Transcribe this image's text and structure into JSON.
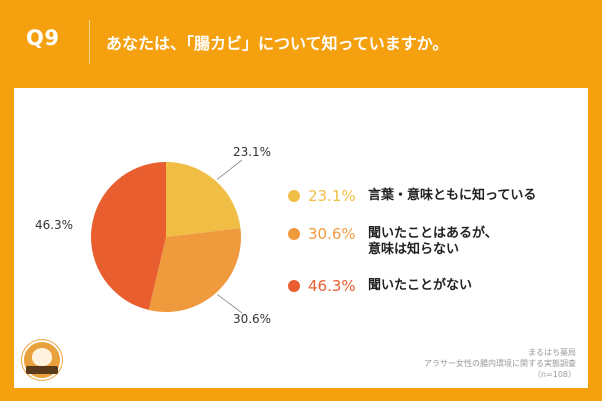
{
  "header": {
    "question_number": "Q9",
    "question_text": "あなたは、「腸カビ」について知っていますか。"
  },
  "chart_data": {
    "type": "pie",
    "title": "",
    "slices": [
      {
        "label": "言葉・意味ともに知っている",
        "value": 23.1,
        "label_text": "23.1%",
        "color": "#F0BD45"
      },
      {
        "label": "聞いたことはあるが、\n意味は知らない",
        "value": 30.6,
        "label_text": "30.6%",
        "color": "#F09A3E"
      },
      {
        "label": "聞いたことがない",
        "value": 46.3,
        "label_text": "46.3%",
        "color": "#E85E2F"
      }
    ],
    "start_angle": 0,
    "direction": "clockwise"
  },
  "legend": {
    "items": [
      {
        "pct": "23.1%",
        "text": "言葉・意味ともに知っている",
        "color": "#F0BD45"
      },
      {
        "pct": "30.6%",
        "text": "聞いたことはあるが、\n意味は知らない",
        "color": "#F09A3E"
      },
      {
        "pct": "46.3%",
        "text": "聞いたことがない",
        "color": "#E85E2F"
      }
    ]
  },
  "footer": {
    "source_line1": "まるはち薬局",
    "source_line2": "アラサー女性の腸内環境に関する実態調査",
    "source_line3": "（n=108）"
  }
}
